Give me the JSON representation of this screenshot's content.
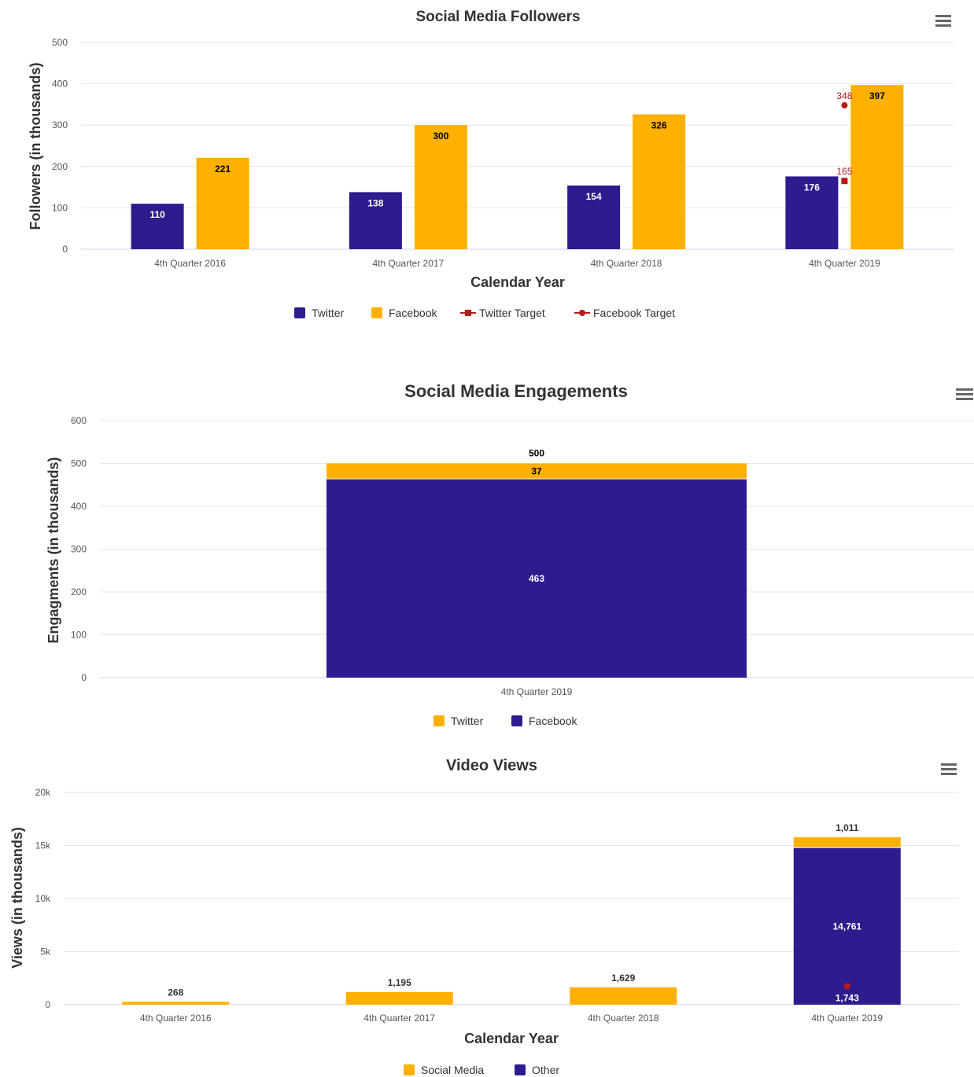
{
  "colors": {
    "purple": "#2e1b8e",
    "orange": "#ffb000",
    "target_red": "#b71c1c",
    "grid": "#e6e6e6"
  },
  "charts": [
    {
      "id": "followers",
      "menu_icon": "hamburger-menu-icon",
      "chart_data": {
        "type": "bar",
        "title": "Social Media Followers",
        "xlabel": "Calendar Year",
        "ylabel": "Followers (in thousands)",
        "ylim": [
          0,
          500
        ],
        "yticks": [
          "0",
          "100",
          "200",
          "300",
          "400",
          "500"
        ],
        "categories": [
          "4th Quarter 2016",
          "4th Quarter 2017",
          "4th Quarter 2018",
          "4th Quarter 2019"
        ],
        "series": [
          {
            "name": "Twitter",
            "color": "#2e1b8e",
            "values": [
              110,
              138,
              154,
              176
            ],
            "labels": [
              "110",
              "138",
              "154",
              "176"
            ]
          },
          {
            "name": "Facebook",
            "color": "#ffb000",
            "values": [
              221,
              300,
              326,
              397
            ],
            "labels": [
              "221",
              "300",
              "326",
              "397"
            ]
          }
        ],
        "targets": [
          {
            "name": "Twitter Target",
            "color": "#b71c1c",
            "marker": "square",
            "values": [
              null,
              null,
              null,
              165
            ],
            "labels": [
              "",
              "",
              "",
              "165"
            ]
          },
          {
            "name": "Facebook Target",
            "color": "#b71c1c",
            "marker": "circle",
            "values": [
              null,
              null,
              null,
              348
            ],
            "labels": [
              "",
              "",
              "",
              "348"
            ]
          }
        ],
        "legend": [
          "Twitter",
          "Facebook",
          "Twitter Target",
          "Facebook Target"
        ],
        "legend_position": "bottom-center",
        "grid": true
      }
    },
    {
      "id": "engagements",
      "menu_icon": "hamburger-menu-icon",
      "chart_data": {
        "type": "bar",
        "stacked": true,
        "title": "Social Media Engagements",
        "xlabel": "",
        "ylabel": "Engagments (in thousands)",
        "ylim": [
          0,
          600
        ],
        "yticks": [
          "0",
          "100",
          "200",
          "300",
          "400",
          "500",
          "600"
        ],
        "categories": [
          "4th Quarter 2019"
        ],
        "series": [
          {
            "name": "Twitter",
            "color": "#ffb000",
            "values": [
              37
            ],
            "labels": [
              "37"
            ]
          },
          {
            "name": "Facebook",
            "color": "#2e1b8e",
            "values": [
              463
            ],
            "labels": [
              "463"
            ]
          }
        ],
        "totals": [
          "500"
        ],
        "legend": [
          "Twitter",
          "Facebook"
        ],
        "legend_position": "bottom-center",
        "grid": true
      }
    },
    {
      "id": "video",
      "menu_icon": "hamburger-menu-icon",
      "chart_data": {
        "type": "bar",
        "stacked": true,
        "title": "Video Views",
        "xlabel": "Calendar Year",
        "ylabel": "Views (in thousands)",
        "ylim": [
          0,
          20000
        ],
        "yticks": [
          "0",
          "5k",
          "10k",
          "15k",
          "20k"
        ],
        "categories": [
          "4th Quarter 2016",
          "4th Quarter 2017",
          "4th Quarter 2018",
          "4th Quarter 2019"
        ],
        "series": [
          {
            "name": "Social Media",
            "color": "#ffb000",
            "values": [
              268,
              1195,
              1629,
              1011
            ],
            "labels": [
              "268",
              "1,195",
              "1,629",
              "1,011"
            ]
          },
          {
            "name": "Other",
            "color": "#2e1b8e",
            "values": [
              0,
              0,
              0,
              14761
            ],
            "labels": [
              "",
              "",
              "",
              "14,761"
            ]
          }
        ],
        "target": {
          "color": "#b71c1c",
          "values": [
            null,
            null,
            null,
            1743
          ],
          "labels": [
            "",
            "",
            "",
            "1,743"
          ]
        },
        "legend": [
          "Social Media",
          "Other"
        ],
        "legend_position": "bottom-center",
        "grid": true
      }
    }
  ]
}
